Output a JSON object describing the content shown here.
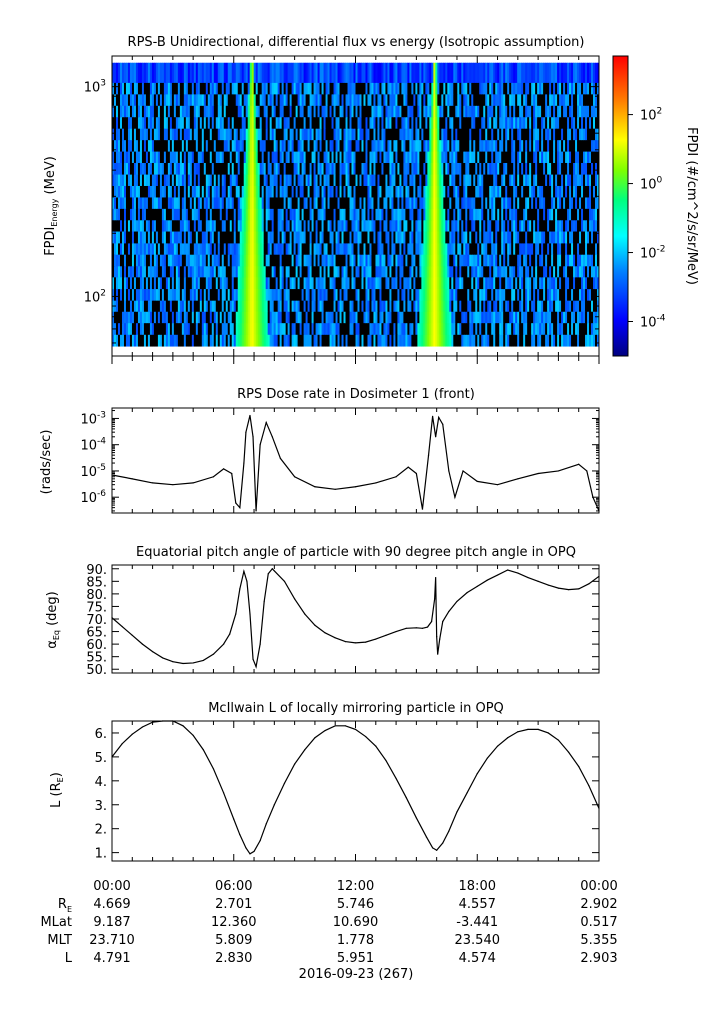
{
  "chart_data": [
    {
      "type": "heatmap",
      "title": "RPS-B  Unidirectional, differential flux vs energy (Isotropic assumption)",
      "ylabel": "FPDI",
      "ylabel_sub": "Energy",
      "ylabel_unit": "(MeV)",
      "yscale": "log",
      "ylim": [
        52,
        1400
      ],
      "yticks": [
        {
          "value": 1000,
          "base": "10",
          "exp": "3"
        },
        {
          "value": 100,
          "base": "10",
          "exp": "2"
        }
      ],
      "energy_channels_mev": [
        58,
        66,
        75,
        85,
        96,
        109,
        124,
        140,
        159,
        180,
        205,
        232,
        263,
        298,
        338,
        383,
        435,
        493,
        559,
        634,
        719,
        815,
        924,
        1048,
        1300
      ],
      "xlim_hours": [
        0,
        24
      ],
      "flux_peaks_hours": [
        6.9,
        15.9
      ],
      "colorbar": {
        "label": "FPDI (#/cm^2/s/sr/MeV)",
        "scale": "log",
        "range": [
          1e-05,
          5000
        ],
        "colors": [
          "#00007f",
          "#0000ff",
          "#007fff",
          "#00ffff",
          "#00ff7f",
          "#7fff00",
          "#ffff00",
          "#ff7f00",
          "#ff0000"
        ],
        "ticks": [
          {
            "value": 100,
            "base": "10",
            "exp": "2"
          },
          {
            "value": 1,
            "base": "10",
            "exp": "0"
          },
          {
            "value": 0.01,
            "base": "10",
            "exp": "-2"
          },
          {
            "value": 0.0001,
            "base": "10",
            "exp": "-4"
          }
        ]
      }
    },
    {
      "type": "line",
      "title": "RPS  Dose rate in Dosimeter 1 (front)",
      "ylabel": "(rads/sec)",
      "yscale": "log",
      "ylim": [
        2.5e-07,
        0.0025
      ],
      "yticks": [
        {
          "value": 0.001,
          "base": "10",
          "exp": "-3"
        },
        {
          "value": 0.0001,
          "base": "10",
          "exp": "-4"
        },
        {
          "value": 1e-05,
          "base": "10",
          "exp": "-5"
        },
        {
          "value": 1e-06,
          "base": "10",
          "exp": "-6"
        }
      ],
      "x_hours": [
        0,
        1,
        2,
        3,
        4,
        5,
        5.5,
        5.9,
        6.1,
        6.3,
        6.5,
        6.6,
        6.8,
        6.95,
        7.1,
        7.3,
        7.6,
        7.9,
        8.3,
        9,
        10,
        11,
        12,
        13,
        14,
        14.6,
        15,
        15.3,
        15.6,
        15.8,
        15.95,
        16.1,
        16.3,
        16.6,
        16.9,
        17.3,
        18,
        19,
        20,
        21,
        22,
        23,
        23.4,
        23.7,
        24
      ],
      "values": [
        7e-06,
        5e-06,
        3.5e-06,
        3e-06,
        3.5e-06,
        6e-06,
        1.2e-05,
        8e-06,
        6e-07,
        4e-07,
        2e-05,
        0.0003,
        0.0013,
        0.0002,
        3e-07,
        0.0001,
        0.0007,
        0.0002,
        3e-05,
        6e-06,
        2.5e-06,
        2e-06,
        2.5e-06,
        3.5e-06,
        6e-06,
        1.4e-05,
        8e-06,
        3.5e-07,
        4e-05,
        0.0012,
        0.0002,
        0.0011,
        0.0006,
        1e-05,
        1e-06,
        1e-05,
        4e-06,
        3e-06,
        5e-06,
        8e-06,
        1e-05,
        1.8e-05,
        1e-05,
        1e-06,
        3e-07
      ]
    },
    {
      "type": "line",
      "title": "Equatorial pitch angle of particle with 90 degree pitch angle in OPQ",
      "ylabel": "α",
      "ylabel_sub": "Eq",
      "ylabel_unit": "(deg)",
      "ylim": [
        48.5,
        91.5
      ],
      "yticks": [
        50,
        55,
        60,
        65,
        70,
        75,
        80,
        85,
        90
      ],
      "x_hours": [
        0,
        0.5,
        1,
        1.5,
        2,
        2.5,
        3,
        3.5,
        4,
        4.5,
        5,
        5.5,
        5.8,
        6.1,
        6.3,
        6.5,
        6.65,
        6.8,
        6.95,
        7.1,
        7.3,
        7.5,
        7.7,
        7.9,
        8.5,
        9,
        9.5,
        10,
        10.5,
        11,
        11.5,
        12,
        12.5,
        13,
        13.5,
        14,
        14.5,
        15,
        15.3,
        15.55,
        15.75,
        15.9,
        15.95,
        16.0,
        16.05,
        16.15,
        16.3,
        16.6,
        17,
        17.5,
        18,
        18.5,
        19,
        19.5,
        20,
        20.5,
        21,
        21.5,
        22,
        22.5,
        23,
        23.5,
        24
      ],
      "values": [
        70.5,
        67,
        63.5,
        60,
        57,
        54.5,
        53,
        52.3,
        52.5,
        53.5,
        56,
        60,
        64,
        72,
        82,
        89,
        85,
        72,
        54,
        51,
        60,
        77,
        88,
        90,
        85,
        78,
        72,
        67.5,
        64.5,
        62.5,
        61,
        60.5,
        60.8,
        62,
        63.5,
        65,
        66.3,
        66.5,
        66.3,
        66.8,
        69,
        78,
        86.5,
        63,
        56,
        62,
        69,
        73,
        77,
        80.5,
        83,
        85.5,
        87.5,
        89.5,
        88.3,
        86.5,
        85,
        83.5,
        82.3,
        81.7,
        82,
        84,
        87
      ]
    },
    {
      "type": "line",
      "title": "McIlwain L of locally mirroring particle in OPQ",
      "ylabel": "L (R",
      "ylabel_sub": "E",
      "ylabel_unit": ")",
      "ylim": [
        0.65,
        6.5
      ],
      "yticks": [
        1,
        2,
        3,
        4,
        5,
        6
      ],
      "yticklabels": [
        "1.",
        "2.",
        "3.",
        "4.",
        "5.",
        "6."
      ],
      "x_hours": [
        0,
        0.5,
        1,
        1.5,
        2,
        2.5,
        3,
        3.5,
        4,
        4.5,
        5,
        5.5,
        6,
        6.3,
        6.6,
        6.8,
        7,
        7.3,
        7.6,
        8,
        8.5,
        9,
        9.5,
        10,
        10.5,
        11,
        11.5,
        12,
        12.5,
        13,
        13.5,
        14,
        14.5,
        15,
        15.5,
        15.8,
        16,
        16.3,
        16.6,
        17,
        17.5,
        18,
        18.5,
        19,
        19.5,
        20,
        20.5,
        21,
        21.5,
        22,
        22.5,
        23,
        23.5,
        24
      ],
      "values": [
        5.0,
        5.55,
        5.95,
        6.25,
        6.45,
        6.55,
        6.5,
        6.3,
        5.9,
        5.3,
        4.5,
        3.5,
        2.4,
        1.75,
        1.2,
        0.95,
        1.05,
        1.5,
        2.2,
        3.0,
        3.9,
        4.7,
        5.3,
        5.8,
        6.1,
        6.3,
        6.3,
        6.15,
        5.85,
        5.45,
        4.85,
        4.1,
        3.3,
        2.45,
        1.65,
        1.2,
        1.1,
        1.4,
        1.9,
        2.7,
        3.5,
        4.3,
        4.95,
        5.45,
        5.8,
        6.05,
        6.15,
        6.15,
        6.0,
        5.7,
        5.2,
        4.6,
        3.8,
        2.85
      ]
    }
  ],
  "time_axis": {
    "ticks": [
      "00:00",
      "06:00",
      "12:00",
      "18:00",
      "00:00"
    ],
    "date_label": "2016-09-23 (267)"
  },
  "ephemeris": {
    "rows": [
      {
        "label": "R",
        "label_sub": "E",
        "values": [
          "4.669",
          "2.701",
          "5.746",
          "4.557",
          "2.902"
        ]
      },
      {
        "label": "MLat",
        "label_sub": "",
        "values": [
          "9.187",
          "12.360",
          "10.690",
          "-3.441",
          "0.517"
        ]
      },
      {
        "label": "MLT",
        "label_sub": "",
        "values": [
          "23.710",
          "5.809",
          "1.778",
          "23.540",
          "5.355"
        ]
      },
      {
        "label": "L",
        "label_sub": "",
        "values": [
          "4.791",
          "2.830",
          "5.951",
          "4.574",
          "2.903"
        ]
      }
    ]
  }
}
